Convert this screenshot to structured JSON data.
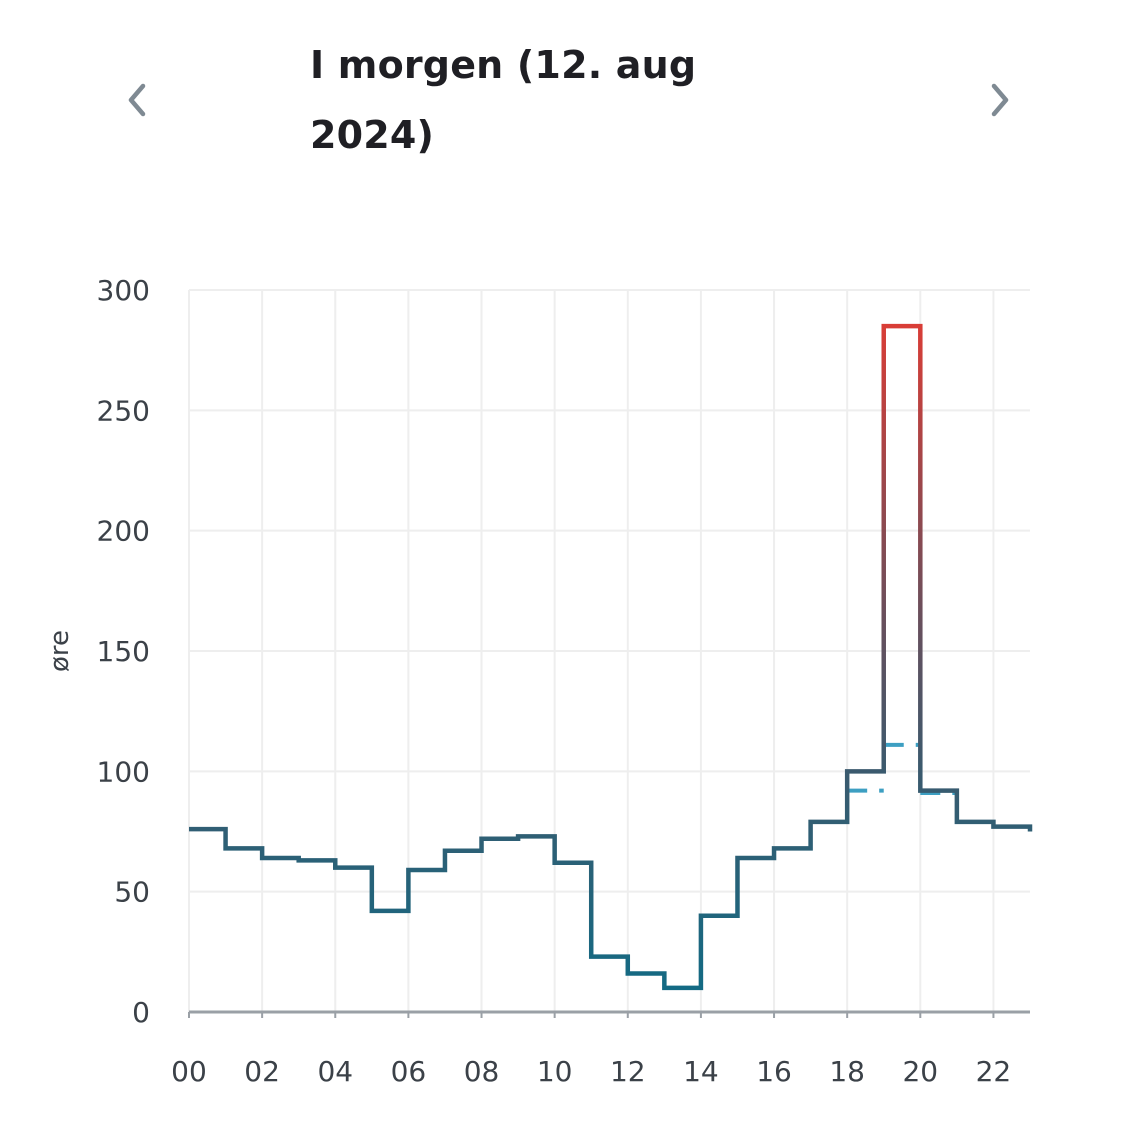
{
  "header": {
    "title": "I morgen (12. aug 2024)",
    "prev_icon": "chevron-left-icon",
    "next_icon": "chevron-right-icon"
  },
  "chart_data": {
    "type": "line",
    "step": true,
    "ylabel": "øre",
    "ylim": [
      0,
      300
    ],
    "y_ticks": [
      "0",
      "50",
      "100",
      "150",
      "200",
      "250",
      "300"
    ],
    "x_ticks": [
      "00",
      "02",
      "04",
      "06",
      "08",
      "10",
      "12",
      "14",
      "16",
      "18",
      "20",
      "22"
    ],
    "x_hours": [
      0,
      1,
      2,
      3,
      4,
      5,
      6,
      7,
      8,
      9,
      10,
      11,
      12,
      13,
      14,
      15,
      16,
      17,
      18,
      19,
      20,
      21,
      22,
      23
    ],
    "series": [
      {
        "values": [
          76,
          68,
          64,
          63,
          60,
          42,
          59,
          67,
          72,
          73,
          62,
          23,
          16,
          10,
          40,
          64,
          68,
          79,
          100,
          285,
          92,
          79,
          77,
          75
        ]
      }
    ],
    "dashed_segments": [
      {
        "hour": 18.5,
        "value": 92
      },
      {
        "hour": 19.5,
        "value": 111
      },
      {
        "hour": 20.5,
        "value": 91
      }
    ],
    "grid": true,
    "colors": {
      "line_low": "#0f6c86",
      "line_mid": "#3a5a6e",
      "line_high": "#e63b32",
      "dashed": "#3d9fc2",
      "grid": "#eeeeee",
      "axis": "#9aa0a6",
      "chevron": "#7f8a93"
    }
  }
}
